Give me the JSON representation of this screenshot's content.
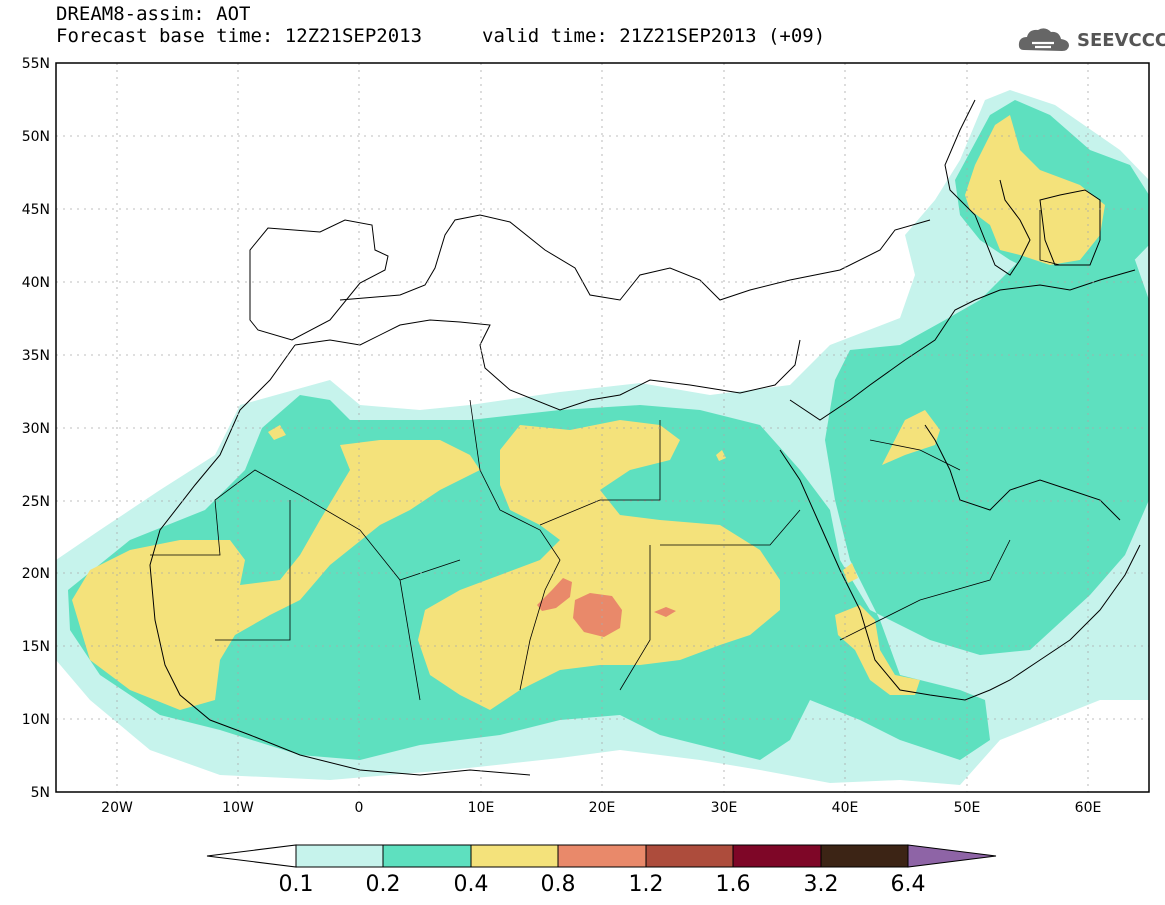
{
  "header": {
    "model_title": "DREAM8-assim: AOT",
    "base_time": "Forecast base time: 12Z21SEP2013",
    "valid_time": "valid time: 21Z21SEP2013 (+09)",
    "logo_text": "SEEVCCC"
  },
  "axes": {
    "x_ticks": [
      "20W",
      "10W",
      "0",
      "10E",
      "20E",
      "30E",
      "40E",
      "50E",
      "60E"
    ],
    "y_ticks": [
      "55N",
      "50N",
      "45N",
      "40N",
      "35N",
      "30N",
      "25N",
      "20N",
      "15N",
      "10N",
      "5N"
    ],
    "lon_range": [
      -25,
      65
    ],
    "lat_range": [
      5,
      55
    ]
  },
  "colorbar": {
    "labels": [
      "0.1",
      "0.2",
      "0.4",
      "0.8",
      "1.2",
      "1.6",
      "3.2",
      "6.4"
    ],
    "colors": [
      "#c6f3ec",
      "#5ee0bf",
      "#f4e27b",
      "#e9896a",
      "#ad4c3c",
      "#7e0627",
      "#3c2415",
      "#8e64a6"
    ]
  },
  "levels": {
    "l1_color": "#c6f3ec",
    "l2_color": "#5ee0bf",
    "l3_color": "#f4e27b",
    "l4_color": "#e9896a"
  }
}
